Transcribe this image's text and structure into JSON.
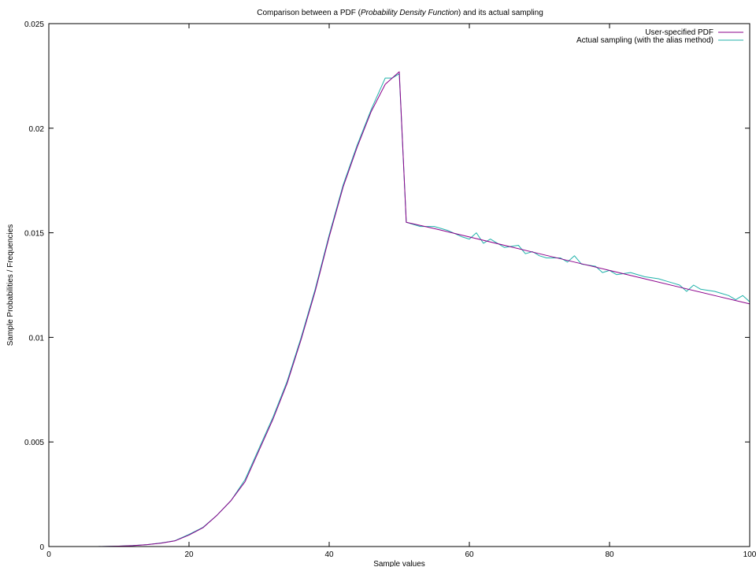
{
  "chart_data": {
    "type": "line",
    "title": {
      "pre": "Comparison between a PDF (",
      "italic": "Probability Density Function",
      "post": ") and its actual sampling"
    },
    "xlabel": "Sample values",
    "ylabel": "Sample Probabilities / Frequencies",
    "xlim": [
      0,
      100
    ],
    "ylim": [
      0,
      0.025
    ],
    "xticks": [
      0,
      20,
      40,
      60,
      80,
      100
    ],
    "xtick_labels": [
      "0",
      "20",
      "40",
      "60",
      "80",
      "100"
    ],
    "yticks": [
      0,
      0.005,
      0.01,
      0.015,
      0.02,
      0.025
    ],
    "ytick_labels": [
      "0",
      "0.005",
      "0.01",
      "0.015",
      "0.02",
      "0.025"
    ],
    "grid": false,
    "legend_position": "top-right",
    "series": [
      {
        "name": "User-specified PDF",
        "color": "#8b008b",
        "x": [
          7,
          10,
          12,
          14,
          16,
          18,
          20,
          22,
          24,
          26,
          28,
          30,
          32,
          34,
          36,
          38,
          40,
          42,
          44,
          46,
          48,
          50,
          51,
          55,
          60,
          65,
          70,
          75,
          80,
          85,
          90,
          95,
          100
        ],
        "y": [
          0.0,
          2e-05,
          4e-05,
          9e-05,
          0.00016,
          0.00027,
          0.00055,
          0.0009,
          0.0015,
          0.0022,
          0.0031,
          0.0046,
          0.0061,
          0.0078,
          0.0099,
          0.0122,
          0.0148,
          0.0172,
          0.0191,
          0.0208,
          0.0221,
          0.0227,
          0.0155,
          0.0152,
          0.0148,
          0.0144,
          0.014,
          0.0136,
          0.0132,
          0.0128,
          0.0124,
          0.012,
          0.0116
        ]
      },
      {
        "name": "Actual sampling (with the alias method)",
        "color": "#20b2aa",
        "x": [
          7,
          10,
          12,
          14,
          16,
          18,
          20,
          22,
          24,
          26,
          28,
          30,
          32,
          34,
          36,
          38,
          40,
          42,
          44,
          46,
          48,
          49,
          50,
          51,
          53,
          55,
          57,
          59,
          60,
          61,
          62,
          63,
          64,
          65,
          67,
          68,
          69,
          70,
          71,
          73,
          74,
          75,
          76,
          78,
          79,
          80,
          81,
          83,
          85,
          87,
          88,
          89,
          90,
          91,
          92,
          93,
          95,
          96,
          97,
          98,
          99,
          100
        ],
        "y": [
          0.0,
          2e-05,
          5e-05,
          9e-05,
          0.00017,
          0.00028,
          0.00058,
          0.00092,
          0.0015,
          0.0022,
          0.0032,
          0.0047,
          0.0062,
          0.0079,
          0.01,
          0.0123,
          0.0149,
          0.0173,
          0.0192,
          0.0209,
          0.0224,
          0.0224,
          0.0226,
          0.0155,
          0.0153,
          0.0153,
          0.0151,
          0.0148,
          0.0147,
          0.015,
          0.0145,
          0.0147,
          0.0145,
          0.0143,
          0.0144,
          0.014,
          0.0141,
          0.0139,
          0.0138,
          0.0138,
          0.0136,
          0.0139,
          0.0135,
          0.0134,
          0.0131,
          0.0132,
          0.013,
          0.0131,
          0.0129,
          0.0128,
          0.0127,
          0.0126,
          0.0125,
          0.0122,
          0.0125,
          0.0123,
          0.0122,
          0.0121,
          0.012,
          0.0118,
          0.012,
          0.0117
        ]
      }
    ]
  }
}
